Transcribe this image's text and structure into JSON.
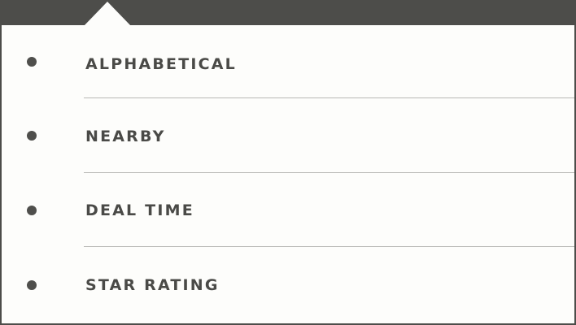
{
  "sort_menu": {
    "items": [
      {
        "label": "ALPHABETICAL"
      },
      {
        "label": "NEARBY"
      },
      {
        "label": "DEAL TIME"
      },
      {
        "label": "STAR RATING"
      }
    ]
  },
  "colors": {
    "bar": "#4d4d4a",
    "panel": "#fdfdfb",
    "text": "#4a4a47",
    "divider": "#b8b8b5"
  }
}
